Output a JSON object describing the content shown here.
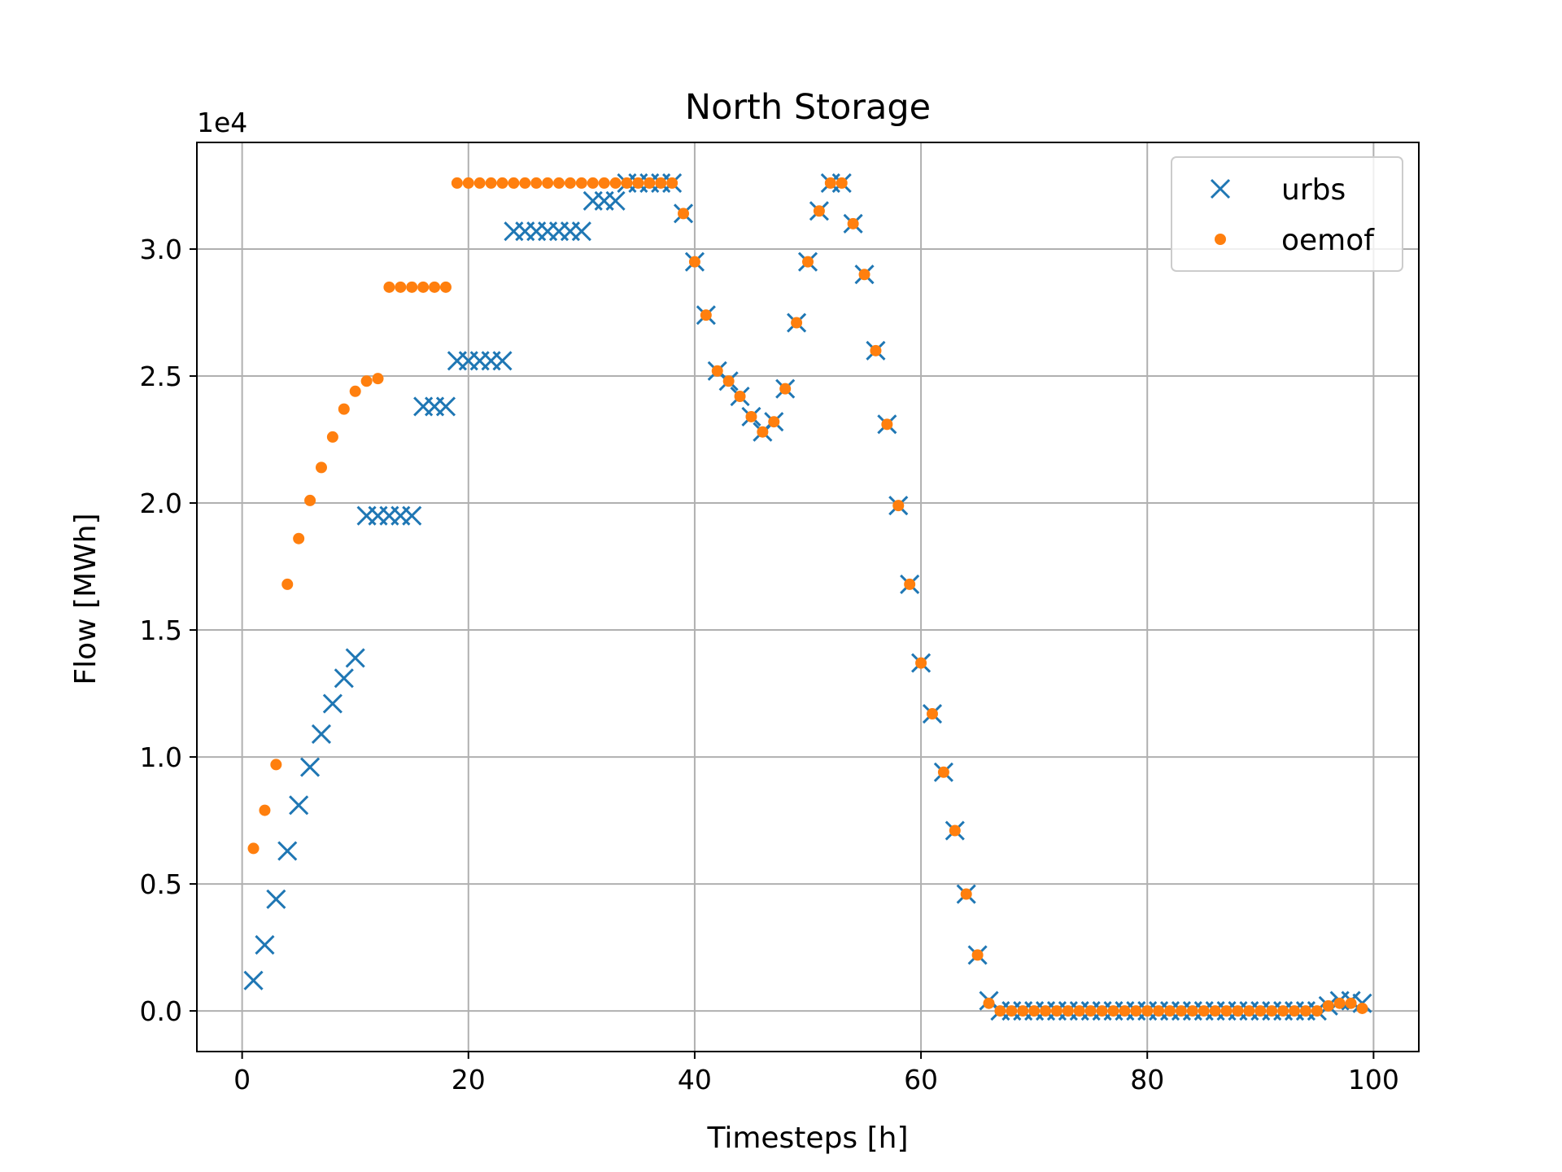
{
  "chart_data": {
    "type": "scatter",
    "title": "North Storage",
    "xlabel": "Timesteps [h]",
    "ylabel": "Flow [MWh]",
    "y_offset_label": "1e4",
    "xlim": [
      -4,
      104
    ],
    "ylim": [
      -0.16,
      3.42
    ],
    "y_scale_factor": 10000,
    "xticks": [
      0,
      20,
      40,
      60,
      80,
      100
    ],
    "yticks": [
      0.0,
      0.5,
      1.0,
      1.5,
      2.0,
      2.5,
      3.0
    ],
    "xtick_labels": [
      "0",
      "20",
      "40",
      "60",
      "80",
      "100"
    ],
    "ytick_labels": [
      "0.0",
      "0.5",
      "1.0",
      "1.5",
      "2.0",
      "2.5",
      "3.0"
    ],
    "grid": true,
    "legend_position": "top-right",
    "series": [
      {
        "name": "urbs",
        "marker": "x",
        "color": "#1f77b4",
        "x": [
          1,
          2,
          3,
          4,
          5,
          6,
          7,
          8,
          9,
          10,
          11,
          12,
          13,
          14,
          15,
          16,
          17,
          18,
          19,
          20,
          21,
          22,
          23,
          24,
          25,
          26,
          27,
          28,
          29,
          30,
          31,
          32,
          33,
          34,
          35,
          36,
          37,
          38,
          39,
          40,
          41,
          42,
          43,
          44,
          45,
          46,
          47,
          48,
          49,
          50,
          51,
          52,
          53,
          54,
          55,
          56,
          57,
          58,
          59,
          60,
          61,
          62,
          63,
          64,
          65,
          66,
          67,
          68,
          69,
          70,
          71,
          72,
          73,
          74,
          75,
          76,
          77,
          78,
          79,
          80,
          81,
          82,
          83,
          84,
          85,
          86,
          87,
          88,
          89,
          90,
          91,
          92,
          93,
          94,
          95,
          96,
          97,
          98,
          99
        ],
        "y": [
          0.12,
          0.26,
          0.44,
          0.63,
          0.81,
          0.96,
          1.09,
          1.21,
          1.31,
          1.39,
          1.95,
          1.95,
          1.95,
          1.95,
          1.95,
          2.38,
          2.38,
          2.38,
          2.56,
          2.56,
          2.56,
          2.56,
          2.56,
          3.07,
          3.07,
          3.07,
          3.07,
          3.07,
          3.07,
          3.07,
          3.19,
          3.19,
          3.19,
          3.26,
          3.26,
          3.26,
          3.26,
          3.26,
          3.14,
          2.95,
          2.74,
          2.52,
          2.48,
          2.42,
          2.34,
          2.28,
          2.32,
          2.45,
          2.71,
          2.95,
          3.15,
          3.26,
          3.26,
          3.1,
          2.9,
          2.6,
          2.31,
          1.99,
          1.68,
          1.37,
          1.17,
          0.94,
          0.71,
          0.46,
          0.22,
          0.04,
          0.0,
          0.0,
          0.0,
          0.0,
          0.0,
          0.0,
          0.0,
          0.0,
          0.0,
          0.0,
          0.0,
          0.0,
          0.0,
          0.0,
          0.0,
          0.0,
          0.0,
          0.0,
          0.0,
          0.0,
          0.0,
          0.0,
          0.0,
          0.0,
          0.0,
          0.0,
          0.0,
          0.0,
          0.0,
          0.02,
          0.04,
          0.04,
          0.03
        ]
      },
      {
        "name": "oemof",
        "marker": "o",
        "color": "#ff7f0e",
        "x": [
          1,
          2,
          3,
          4,
          5,
          6,
          7,
          8,
          9,
          10,
          11,
          12,
          13,
          14,
          15,
          16,
          17,
          18,
          19,
          20,
          21,
          22,
          23,
          24,
          25,
          26,
          27,
          28,
          29,
          30,
          31,
          32,
          33,
          34,
          35,
          36,
          37,
          38,
          39,
          40,
          41,
          42,
          43,
          44,
          45,
          46,
          47,
          48,
          49,
          50,
          51,
          52,
          53,
          54,
          55,
          56,
          57,
          58,
          59,
          60,
          61,
          62,
          63,
          64,
          65,
          66,
          67,
          68,
          69,
          70,
          71,
          72,
          73,
          74,
          75,
          76,
          77,
          78,
          79,
          80,
          81,
          82,
          83,
          84,
          85,
          86,
          87,
          88,
          89,
          90,
          91,
          92,
          93,
          94,
          95,
          96,
          97,
          98,
          99
        ],
        "y": [
          0.64,
          0.79,
          0.97,
          1.68,
          1.86,
          2.01,
          2.14,
          2.26,
          2.37,
          2.44,
          2.48,
          2.49,
          2.85,
          2.85,
          2.85,
          2.85,
          2.85,
          2.85,
          3.26,
          3.26,
          3.26,
          3.26,
          3.26,
          3.26,
          3.26,
          3.26,
          3.26,
          3.26,
          3.26,
          3.26,
          3.26,
          3.26,
          3.26,
          3.26,
          3.26,
          3.26,
          3.26,
          3.26,
          3.14,
          2.95,
          2.74,
          2.52,
          2.48,
          2.42,
          2.34,
          2.28,
          2.32,
          2.45,
          2.71,
          2.95,
          3.15,
          3.26,
          3.26,
          3.1,
          2.9,
          2.6,
          2.31,
          1.99,
          1.68,
          1.37,
          1.17,
          0.94,
          0.71,
          0.46,
          0.22,
          0.03,
          0.0,
          0.0,
          0.0,
          0.0,
          0.0,
          0.0,
          0.0,
          0.0,
          0.0,
          0.0,
          0.0,
          0.0,
          0.0,
          0.0,
          0.0,
          0.0,
          0.0,
          0.0,
          0.0,
          0.0,
          0.0,
          0.0,
          0.0,
          0.0,
          0.0,
          0.0,
          0.0,
          0.0,
          0.0,
          0.02,
          0.03,
          0.03,
          0.01
        ]
      }
    ]
  }
}
